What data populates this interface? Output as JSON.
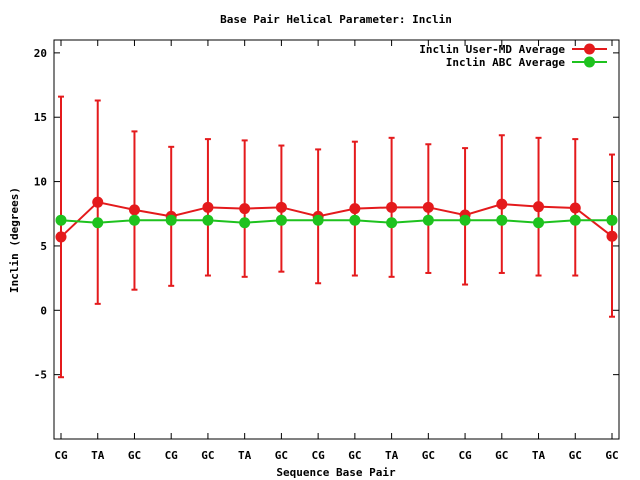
{
  "chart_data": {
    "type": "line",
    "title": "Base Pair Helical Parameter: Inclin",
    "xlabel": "Sequence Base Pair",
    "ylabel": "Inclin (degrees)",
    "categories": [
      "CG",
      "TA",
      "GC",
      "CG",
      "GC",
      "TA",
      "GC",
      "CG",
      "GC",
      "TA",
      "GC",
      "CG",
      "GC",
      "TA",
      "GC",
      "GC"
    ],
    "ylim": [
      -10,
      21
    ],
    "yticks": [
      -5,
      0,
      5,
      10,
      15,
      20
    ],
    "ytick_labels": [
      "-5",
      "0",
      "5",
      "10",
      "15",
      "20"
    ],
    "grid": false,
    "legend_position": "top-right",
    "series": [
      {
        "name": "Inclin User-MD Average",
        "color": "#e41a1c",
        "values": [
          5.7,
          8.4,
          7.8,
          7.3,
          8.0,
          7.9,
          8.0,
          7.3,
          7.9,
          8.0,
          8.0,
          7.4,
          8.25,
          8.05,
          7.95,
          5.75
        ],
        "error_low": [
          -5.2,
          0.5,
          1.6,
          1.9,
          2.7,
          2.6,
          3.0,
          2.1,
          2.7,
          2.6,
          2.9,
          2.0,
          2.9,
          2.7,
          2.7,
          -0.5
        ],
        "error_high": [
          16.6,
          16.3,
          13.9,
          12.7,
          13.3,
          13.2,
          12.8,
          12.5,
          13.1,
          13.4,
          12.9,
          12.6,
          13.6,
          13.4,
          13.3,
          12.1
        ]
      },
      {
        "name": "Inclin ABC Average",
        "color": "#1ec21e",
        "values": [
          7.0,
          6.8,
          7.0,
          7.0,
          7.0,
          6.8,
          7.0,
          7.0,
          7.0,
          6.8,
          7.0,
          7.0,
          7.0,
          6.8,
          7.0,
          7.0
        ]
      }
    ]
  }
}
